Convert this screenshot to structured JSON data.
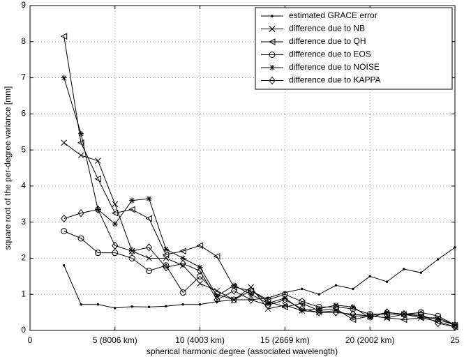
{
  "chart_data": {
    "type": "line",
    "xlabel": "spherical harmonic degree (associated wavelength)",
    "ylabel": "square root of the per-degree variance [mm]",
    "x": [
      2,
      3,
      4,
      5,
      6,
      7,
      8,
      9,
      10,
      11,
      12,
      13,
      14,
      15,
      16,
      17,
      18,
      19,
      20,
      21,
      22,
      23,
      24,
      25
    ],
    "series": [
      {
        "name": "estimated GRACE error",
        "color": "#000000",
        "marker": "point",
        "values": [
          1.8,
          0.72,
          0.72,
          0.62,
          0.66,
          0.65,
          0.67,
          0.72,
          0.72,
          0.8,
          0.85,
          0.85,
          0.9,
          1.05,
          1.15,
          1.0,
          1.25,
          1.15,
          1.5,
          1.35,
          1.7,
          1.6,
          1.97,
          2.3
        ]
      },
      {
        "name": "difference due to NB",
        "color": "#000000",
        "marker": "x",
        "values": [
          5.2,
          4.85,
          4.7,
          3.5,
          2.2,
          2.0,
          2.0,
          1.8,
          1.3,
          1.1,
          0.85,
          1.2,
          0.6,
          0.7,
          0.55,
          0.5,
          0.55,
          0.4,
          0.4,
          0.35,
          0.45,
          0.35,
          0.35,
          0.15
        ]
      },
      {
        "name": "difference due to QH",
        "color": "#000000",
        "marker": "triangle-left",
        "values": [
          8.15,
          5.2,
          4.2,
          3.25,
          3.35,
          3.1,
          2.1,
          2.2,
          2.35,
          2.05,
          1.2,
          1.1,
          0.8,
          0.65,
          0.75,
          0.55,
          0.6,
          0.3,
          0.4,
          0.35,
          0.3,
          0.35,
          0.25,
          0.1
        ]
      },
      {
        "name": "difference due to EOS",
        "color": "#000000",
        "marker": "circle",
        "values": [
          2.75,
          2.55,
          2.15,
          2.15,
          2.0,
          1.65,
          1.8,
          1.05,
          1.5,
          1.0,
          0.85,
          1.1,
          0.85,
          1.0,
          0.8,
          0.65,
          0.65,
          0.6,
          0.45,
          0.45,
          0.45,
          0.5,
          0.4,
          0.15
        ]
      },
      {
        "name": "difference due to NOISE",
        "color": "#000000",
        "marker": "star",
        "values": [
          7.0,
          5.45,
          3.35,
          2.95,
          3.6,
          3.65,
          2.25,
          2.0,
          1.75,
          0.95,
          1.25,
          1.0,
          0.75,
          0.9,
          0.55,
          0.6,
          0.7,
          0.65,
          0.35,
          0.5,
          0.45,
          0.4,
          0.3,
          0.15
        ]
      },
      {
        "name": "difference due to KAPPA",
        "color": "#000000",
        "marker": "diamond",
        "values": [
          3.1,
          3.25,
          3.35,
          2.35,
          2.2,
          2.3,
          1.75,
          1.85,
          1.65,
          0.85,
          1.1,
          0.85,
          0.7,
          0.85,
          0.6,
          0.5,
          0.5,
          0.45,
          0.4,
          0.5,
          0.45,
          0.45,
          0.2,
          0.1
        ]
      }
    ],
    "xlim": [
      0,
      25
    ],
    "xticks": [
      0,
      {
        "value": 5,
        "label": "5 (8006 km)"
      },
      {
        "value": 10,
        "label": "10 (4003 km)"
      },
      {
        "value": 15,
        "label": "15 (2669 km)"
      },
      {
        "value": 20,
        "label": "20 (2002 km)"
      },
      25
    ],
    "ylim": [
      0,
      9
    ],
    "yticks": [
      0,
      1,
      2,
      3,
      4,
      5,
      6,
      7,
      8,
      9
    ],
    "grid": true,
    "legend": "upper-right"
  }
}
